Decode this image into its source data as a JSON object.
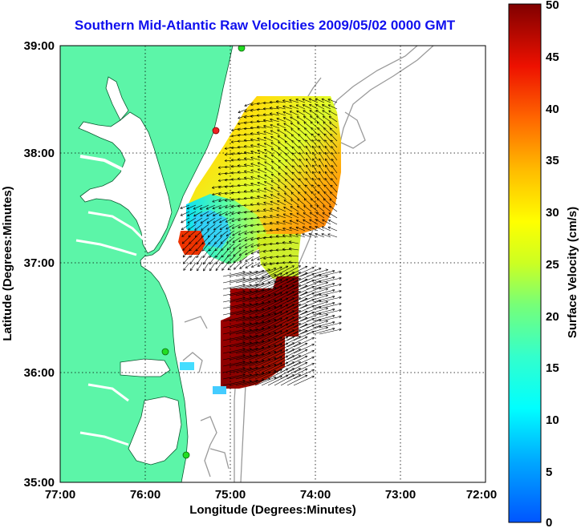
{
  "title": "Southern Mid-Atlantic Raw Velocities 2009/05/02 0000 GMT",
  "x_axis": {
    "label": "Longitude (Degrees:Minutes)",
    "ticks": [
      "77:00",
      "76:00",
      "75:00",
      "74:00",
      "73:00",
      "72:00"
    ]
  },
  "y_axis": {
    "label": "Latitude (Degrees:Minutes)",
    "ticks": [
      "39:00",
      "38:00",
      "37:00",
      "36:00",
      "35:00"
    ]
  },
  "colorbar": {
    "label": "Surface Velocity (cm/s)",
    "ticks": [
      "50",
      "45",
      "40",
      "35",
      "30",
      "25",
      "20",
      "15",
      "10",
      "5",
      "0"
    ],
    "min": 0,
    "max": 50
  },
  "colors": {
    "land": "#5cf5a8",
    "water": "#ffffff",
    "title": "#1010ee",
    "bathymetry": "#9a9a9a",
    "station": "#22dd22",
    "station_alt": "#ee2222"
  },
  "grid": true
}
